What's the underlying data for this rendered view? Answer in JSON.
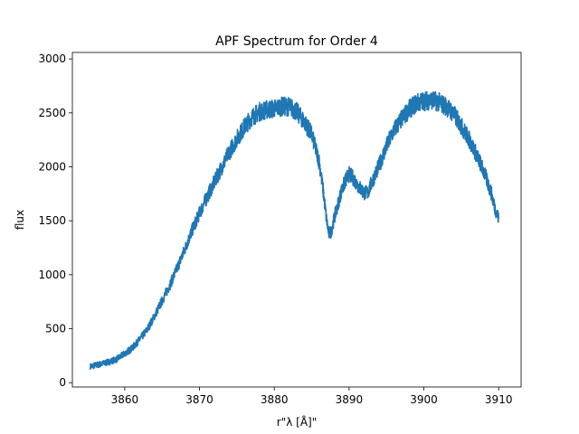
{
  "chart_data": {
    "type": "line",
    "title": "APF Spectrum for Order 4",
    "xlabel": "r\"λ [Å]\"",
    "ylabel": "flux",
    "xlim": [
      3853,
      3913
    ],
    "ylim": [
      -40,
      3060
    ],
    "xticks": [
      3860,
      3870,
      3880,
      3890,
      3900,
      3910
    ],
    "yticks": [
      0,
      500,
      1000,
      1500,
      2000,
      2500,
      3000
    ],
    "grid": false,
    "series": [
      {
        "color": "#1f77b4",
        "x": [
          3855.4,
          3856.0,
          3857.0,
          3858.0,
          3859.0,
          3860.0,
          3861.0,
          3862.0,
          3863.0,
          3864.0,
          3865.0,
          3866.0,
          3867.0,
          3868.0,
          3869.0,
          3870.0,
          3871.0,
          3872.0,
          3873.0,
          3874.0,
          3875.0,
          3876.0,
          3877.0,
          3878.0,
          3879.0,
          3880.0,
          3881.0,
          3882.0,
          3883.0,
          3884.0,
          3885.0,
          3886.0,
          3886.5,
          3887.0,
          3887.3,
          3887.6,
          3888.0,
          3888.5,
          3889.0,
          3889.5,
          3890.0,
          3890.5,
          3891.0,
          3891.5,
          3892.0,
          3892.5,
          3893.0,
          3894.0,
          3895.0,
          3896.0,
          3897.0,
          3898.0,
          3899.0,
          3900.0,
          3901.0,
          3902.0,
          3903.0,
          3904.0,
          3905.0,
          3906.0,
          3907.0,
          3908.0,
          3909.0,
          3909.5,
          3910.0
        ],
        "y": [
          150,
          160,
          175,
          195,
          220,
          270,
          320,
          400,
          490,
          620,
          760,
          900,
          1060,
          1230,
          1410,
          1570,
          1720,
          1860,
          2000,
          2140,
          2260,
          2370,
          2460,
          2510,
          2530,
          2540,
          2560,
          2560,
          2510,
          2420,
          2300,
          2050,
          1800,
          1500,
          1380,
          1400,
          1520,
          1650,
          1780,
          1870,
          1930,
          1900,
          1850,
          1800,
          1760,
          1760,
          1850,
          2010,
          2190,
          2340,
          2440,
          2530,
          2590,
          2610,
          2620,
          2600,
          2560,
          2490,
          2380,
          2260,
          2120,
          1960,
          1760,
          1620,
          1520
        ]
      }
    ]
  }
}
